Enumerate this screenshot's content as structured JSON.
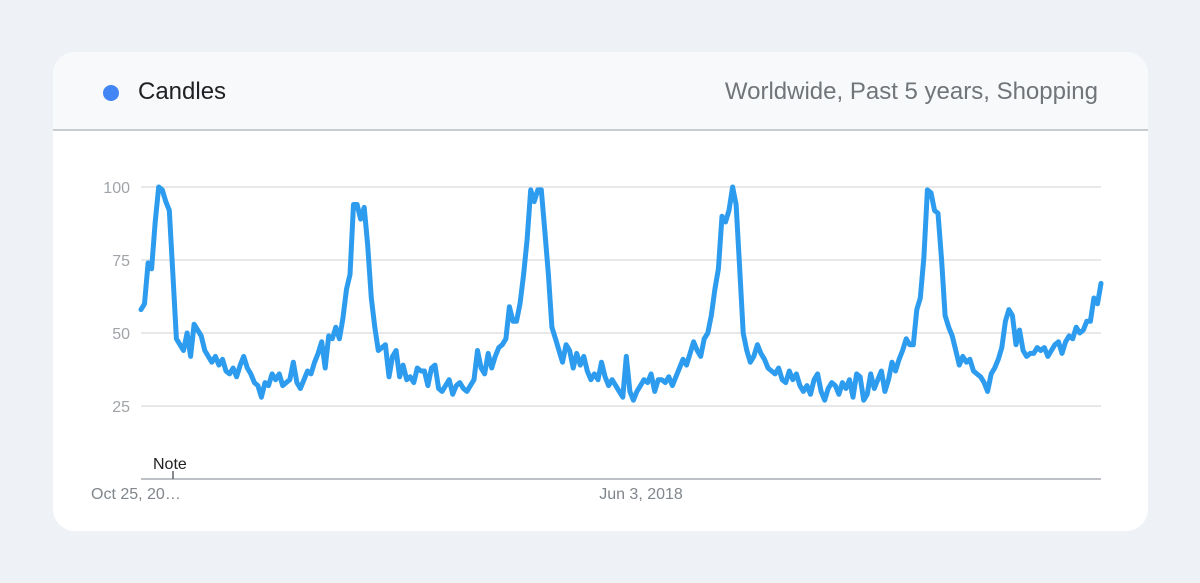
{
  "header": {
    "series_label": "Candles",
    "subtitle": "Worldwide, Past 5 years, Shopping"
  },
  "colors": {
    "series": "#2d9cef",
    "legend_dot": "#4285f4",
    "grid": "#e0e0e0",
    "axis": "#bdc1c6"
  },
  "chart_data": {
    "type": "line",
    "title": "",
    "xlabel": "",
    "ylabel": "",
    "ylim": [
      0,
      100
    ],
    "yticks": [
      25,
      50,
      75,
      100
    ],
    "grid": true,
    "x_tick_labels": [
      "Oct 25, 20…",
      "Jun 3, 2018"
    ],
    "annotation": "Note",
    "series": [
      {
        "name": "Candles",
        "values": [
          58,
          60,
          74,
          72,
          88,
          100,
          99,
          95,
          92,
          70,
          48,
          46,
          44,
          50,
          42,
          53,
          51,
          49,
          44,
          42,
          40,
          42,
          39,
          41,
          37,
          36,
          38,
          35,
          39,
          42,
          38,
          36,
          33,
          32,
          28,
          33,
          32,
          36,
          34,
          36,
          32,
          33,
          34,
          40,
          33,
          31,
          34,
          37,
          36,
          40,
          43,
          47,
          38,
          49,
          48,
          52,
          48,
          55,
          65,
          70,
          94,
          94,
          89,
          93,
          80,
          62,
          52,
          44,
          45,
          46,
          35,
          42,
          44,
          35,
          39,
          34,
          35,
          33,
          38,
          37,
          37,
          32,
          38,
          39,
          31,
          30,
          32,
          34,
          29,
          32,
          33,
          31,
          30,
          32,
          34,
          44,
          38,
          36,
          43,
          38,
          42,
          45,
          46,
          48,
          59,
          54,
          54,
          60,
          70,
          82,
          99,
          95,
          99,
          99,
          85,
          70,
          52,
          48,
          44,
          40,
          46,
          44,
          38,
          43,
          39,
          42,
          37,
          34,
          36,
          34,
          40,
          35,
          32,
          34,
          32,
          30,
          28,
          42,
          30,
          27,
          30,
          32,
          34,
          33,
          36,
          30,
          34,
          34,
          33,
          35,
          32,
          35,
          38,
          41,
          39,
          43,
          47,
          44,
          42,
          48,
          50,
          56,
          65,
          72,
          90,
          88,
          92,
          100,
          94,
          72,
          50,
          44,
          40,
          42,
          46,
          43,
          41,
          38,
          37,
          36,
          38,
          34,
          33,
          37,
          34,
          36,
          32,
          30,
          32,
          29,
          34,
          36,
          30,
          27,
          31,
          33,
          32,
          29,
          33,
          31,
          34,
          28,
          36,
          35,
          27,
          29,
          36,
          31,
          34,
          37,
          30,
          34,
          40,
          37,
          41,
          44,
          48,
          46,
          46,
          58,
          62,
          76,
          99,
          98,
          92,
          91,
          75,
          56,
          52,
          49,
          44,
          39,
          42,
          40,
          41,
          37,
          36,
          35,
          33,
          30,
          36,
          38,
          41,
          45,
          54,
          58,
          56,
          46,
          51,
          44,
          42,
          43,
          43,
          45,
          44,
          45,
          42,
          44,
          46,
          47,
          43,
          47,
          49,
          48,
          52,
          50,
          51,
          54,
          54,
          62,
          60,
          67
        ]
      }
    ]
  }
}
